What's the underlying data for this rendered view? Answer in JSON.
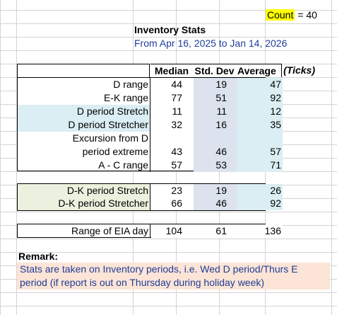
{
  "count": {
    "label": "Count",
    "value": "= 40"
  },
  "title": "Inventory Stats",
  "subtitle": "From Apr 16, 2025 to Jan 14, 2026",
  "headers": {
    "median": "Median",
    "stddev": "Std. Dev",
    "average": "Average",
    "unit": "(Ticks)"
  },
  "main_rows": [
    {
      "label": "D range",
      "median": "44",
      "stddev": "19",
      "average": "47"
    },
    {
      "label": "E-K range",
      "median": "77",
      "stddev": "51",
      "average": "92"
    },
    {
      "label": "D period Stretch",
      "median": "11",
      "stddev": "11",
      "average": "12"
    },
    {
      "label": "D period Stretcher",
      "median": "32",
      "stddev": "16",
      "average": "35"
    },
    {
      "label": "Excursion from D",
      "median": "",
      "stddev": "",
      "average": ""
    },
    {
      "label": "period extreme",
      "median": "43",
      "stddev": "46",
      "average": "57"
    },
    {
      "label": "A - C range",
      "median": "57",
      "stddev": "53",
      "average": "71"
    }
  ],
  "dk_rows": [
    {
      "label": "D-K period Stretch",
      "median": "23",
      "stddev": "19",
      "average": "26"
    },
    {
      "label": "D-K period Stretcher",
      "median": "66",
      "stddev": "46",
      "average": "92"
    }
  ],
  "eia_row": {
    "label": "Range of EIA day",
    "median": "104",
    "stddev": "61",
    "average": "136"
  },
  "remark": {
    "title": "Remark:",
    "line1": "Stats are taken on Inventory periods, i.e. Wed D period/Thurs E",
    "line2": "period (if report is out on Thursday during holiday week)"
  },
  "colors": {
    "count_highlight": "#ffff00",
    "blue_label": "#daeef3",
    "stddev_col": "#dce2ee",
    "green_label": "#ebf1de",
    "remark_bg": "#fce4d6",
    "subtitle_text": "#1f3d99"
  }
}
